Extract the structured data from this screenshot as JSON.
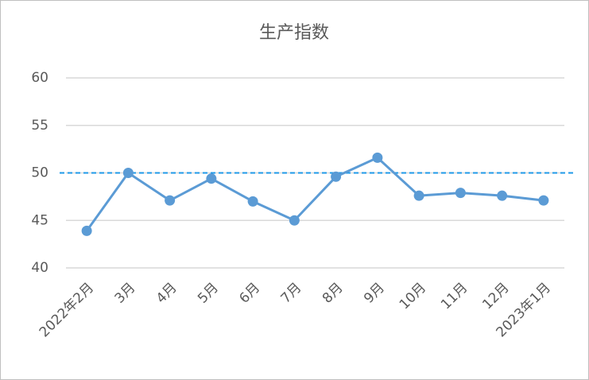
{
  "chart_data": {
    "type": "line",
    "title": "生产指数",
    "categories": [
      "2022年2月",
      "3月",
      "4月",
      "5月",
      "6月",
      "7月",
      "8月",
      "9月",
      "10月",
      "11月",
      "12月",
      "2023年1月"
    ],
    "series": [
      {
        "name": "生产指数",
        "color": "#5b9bd5",
        "values": [
          43.9,
          50.0,
          47.1,
          49.4,
          47.0,
          45.0,
          49.6,
          51.6,
          47.6,
          47.9,
          47.6,
          47.1
        ]
      }
    ],
    "reference_line": {
      "value": 50,
      "color": "#1f9ae8"
    },
    "ylim": [
      40,
      60
    ],
    "yticks": [
      40,
      45,
      50,
      55,
      60
    ],
    "grid": true
  }
}
